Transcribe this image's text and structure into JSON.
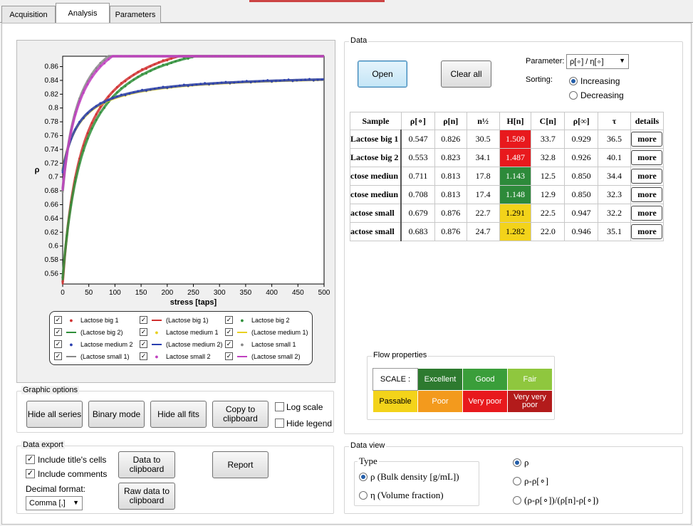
{
  "tabs": [
    "Acquisition",
    "Analysis",
    "Parameters"
  ],
  "data_panel": {
    "title": "Data",
    "open": "Open",
    "clear_all": "Clear all",
    "parameter_label": "Parameter:",
    "parameter_value": "ρ[∘] / η[∘]",
    "sorting_label": "Sorting:",
    "increasing": "Increasing",
    "decreasing": "Decreasing"
  },
  "table": {
    "headers": [
      "Sample",
      "ρ[∘]",
      "ρ[n]",
      "n½",
      "H[n]",
      "C[n]",
      "ρ[∞]",
      "τ",
      "details"
    ],
    "rows": [
      [
        "Lactose big 1",
        "0.547",
        "0.826",
        "30.5",
        "1.509",
        "33.7",
        "0.929",
        "36.5",
        "more"
      ],
      [
        "Lactose big 2",
        "0.553",
        "0.823",
        "34.1",
        "1.487",
        "32.8",
        "0.926",
        "40.1",
        "more"
      ],
      [
        "ctose mediun",
        "0.711",
        "0.813",
        "17.8",
        "1.143",
        "12.5",
        "0.850",
        "34.4",
        "more"
      ],
      [
        "ctose mediun",
        "0.708",
        "0.813",
        "17.4",
        "1.148",
        "12.9",
        "0.850",
        "32.3",
        "more"
      ],
      [
        "actose small",
        "0.679",
        "0.876",
        "22.7",
        "1.291",
        "22.5",
        "0.947",
        "32.2",
        "more"
      ],
      [
        "actose small",
        "0.683",
        "0.876",
        "24.7",
        "1.282",
        "22.0",
        "0.946",
        "35.1",
        "more"
      ]
    ],
    "h_colors": [
      "#e8191d",
      "#e8191d",
      "#2d8a3a",
      "#2d8a3a",
      "#f3d31a",
      "#f3d31a"
    ]
  },
  "flow": {
    "title": "Flow properties",
    "scale_label": "SCALE :",
    "cells": [
      {
        "t": "Excellent",
        "c": "#2d7a2f"
      },
      {
        "t": "Good",
        "c": "#3a9e3a"
      },
      {
        "t": "Fair",
        "c": "#8fc73e"
      },
      {
        "t": "Passable",
        "c": "#f3d31a"
      },
      {
        "t": "Poor",
        "c": "#f39a1d"
      },
      {
        "t": "Very poor",
        "c": "#e8191d"
      },
      {
        "t": "Very very poor",
        "c": "#b31b1b"
      }
    ]
  },
  "graphic": {
    "title": "Graphic options",
    "hide_series": "Hide all series",
    "binary": "Binary mode",
    "hide_fits": "Hide all fits",
    "copy": "Copy to clipboard",
    "log": "Log scale",
    "hide_legend": "Hide legend"
  },
  "export": {
    "title": "Data export",
    "include_titles": "Include title's cells",
    "include_comments": "Include comments",
    "decimal_label": "Decimal format:",
    "decimal_value": "Comma [,]",
    "data_clip": "Data to clipboard",
    "raw_clip": "Raw data to clipboard",
    "report": "Report"
  },
  "dataview": {
    "title": "Data view",
    "type_label": "Type",
    "opt_rho": "ρ (Bulk density [g/mL])",
    "opt_eta": "η (Volume fraction)",
    "v1": "ρ",
    "v2": "ρ-ρ[∘]",
    "v3": "(ρ-ρ[∘])/(ρ[n]-ρ[∘])"
  },
  "legend": [
    {
      "t": "Lactose big 1",
      "c": "#d03030",
      "k": "dot"
    },
    {
      "t": "(Lactose big 1)",
      "c": "#d03030",
      "k": "line"
    },
    {
      "t": "Lactose big 2",
      "c": "#2f8f3a",
      "k": "dot"
    },
    {
      "t": "(Lactose big 2)",
      "c": "#2f8f3a",
      "k": "line"
    },
    {
      "t": "Lactose medium 1",
      "c": "#e8d020",
      "k": "dot"
    },
    {
      "t": "(Lactose medium 1)",
      "c": "#e8d020",
      "k": "line"
    },
    {
      "t": "Lactose medium 2",
      "c": "#2a3fb0",
      "k": "dot"
    },
    {
      "t": "(Lactose medium 2)",
      "c": "#2a3fb0",
      "k": "line"
    },
    {
      "t": "Lactose small 1",
      "c": "#888888",
      "k": "dot"
    },
    {
      "t": "(Lactose small 1)",
      "c": "#888888",
      "k": "line"
    },
    {
      "t": "Lactose small 2",
      "c": "#c040c0",
      "k": "dot"
    },
    {
      "t": "(Lactose small 2)",
      "c": "#c040c0",
      "k": "line"
    }
  ],
  "chart_data": {
    "type": "scatter",
    "xlabel": "stress [taps]",
    "ylabel": "ρ",
    "xlim": [
      0,
      500
    ],
    "ylim": [
      0.545,
      0.875
    ],
    "xticks": [
      0,
      50,
      100,
      150,
      200,
      250,
      300,
      350,
      400,
      450,
      500
    ],
    "yticks": [
      0.56,
      0.58,
      0.6,
      0.62,
      0.64,
      0.66,
      0.68,
      0.7,
      0.72,
      0.74,
      0.76,
      0.78,
      0.8,
      0.82,
      0.84,
      0.86
    ],
    "series": [
      {
        "name": "Lactose big 1",
        "color": "#d03030",
        "r0": 0.547,
        "rinf": 0.929,
        "tau": 36.5
      },
      {
        "name": "Lactose big 2",
        "color": "#2f8f3a",
        "r0": 0.553,
        "rinf": 0.926,
        "tau": 40.1
      },
      {
        "name": "Lactose medium 1",
        "color": "#e8d020",
        "r0": 0.711,
        "rinf": 0.85,
        "tau": 34.4
      },
      {
        "name": "Lactose medium 2",
        "color": "#2a3fb0",
        "r0": 0.708,
        "rinf": 0.85,
        "tau": 32.3
      },
      {
        "name": "Lactose small 1",
        "color": "#888888",
        "r0": 0.679,
        "rinf": 0.947,
        "tau": 32.2
      },
      {
        "name": "Lactose small 2",
        "color": "#c040c0",
        "r0": 0.683,
        "rinf": 0.946,
        "tau": 35.1
      }
    ]
  }
}
